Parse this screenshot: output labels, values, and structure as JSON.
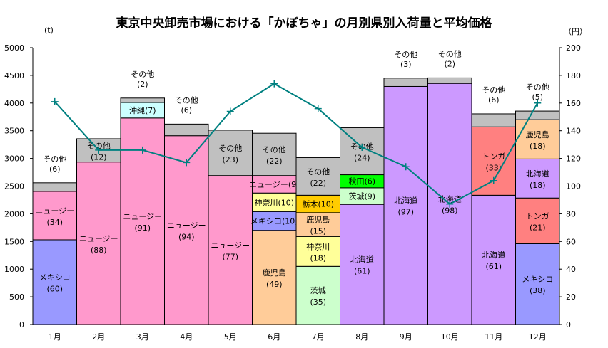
{
  "chart_data": {
    "type": "bar",
    "stacked": true,
    "title": "東京中央卸売市場における「かぼちゃ」の月別県別入荷量と平均価格",
    "y_left_unit": "(t)",
    "y_right_unit": "（円）",
    "ylim_left": [
      0,
      5000
    ],
    "ylim_right": [
      0,
      200
    ],
    "yticks_left": [
      0,
      500,
      1000,
      1500,
      2000,
      2500,
      3000,
      3500,
      4000,
      4500,
      5000
    ],
    "yticks_right": [
      0,
      20,
      40,
      60,
      80,
      100,
      120,
      140,
      160,
      180,
      200
    ],
    "grid": false,
    "categories": [
      "1月",
      "2月",
      "3月",
      "4月",
      "5月",
      "6月",
      "7月",
      "8月",
      "9月",
      "10月",
      "11月",
      "12月"
    ],
    "colors": {
      "メキシコ": "#9999FF",
      "ニュージー": "#FF99CC",
      "その他": "#C0C0C0",
      "沖縄": "#CCFFFF",
      "鹿児島": "#FFCC99",
      "神奈川": "#FFFF99",
      "茨城": "#CCFFCC",
      "栃木": "#FFCC00",
      "秋田": "#00FF00",
      "北海道": "#CC99FF",
      "トンガ": "#FF8080",
      "price_line": "#008080"
    },
    "stacks": [
      [
        {
          "name": "メキシコ",
          "value": 1530,
          "share": 60
        },
        {
          "name": "ニュージー",
          "value": 875,
          "share": 34
        },
        {
          "name": "その他",
          "value": 155,
          "share": 6
        }
      ],
      [
        {
          "name": "ニュージー",
          "value": 2935,
          "share": 88
        },
        {
          "name": "その他",
          "value": 420,
          "share": 12
        }
      ],
      [
        {
          "name": "ニュージー",
          "value": 3730,
          "share": 91
        },
        {
          "name": "沖縄",
          "value": 280,
          "share": 7
        },
        {
          "name": "その他",
          "value": 80,
          "share": 2
        }
      ],
      [
        {
          "name": "ニュージー",
          "value": 3410,
          "share": 94
        },
        {
          "name": "その他",
          "value": 210,
          "share": 6
        }
      ],
      [
        {
          "name": "ニュージー",
          "value": 2690,
          "share": 77
        },
        {
          "name": "その他",
          "value": 820,
          "share": 23
        }
      ],
      [
        {
          "name": "鹿児島",
          "value": 1700,
          "share": 49
        },
        {
          "name": "メキシコ",
          "value": 340,
          "share": 10
        },
        {
          "name": "神奈川",
          "value": 335,
          "share": 10
        },
        {
          "name": "ニュージー",
          "value": 315,
          "share": 9
        },
        {
          "name": "その他",
          "value": 765,
          "share": 22
        }
      ],
      [
        {
          "name": "茨城",
          "value": 1050,
          "share": 35
        },
        {
          "name": "神奈川",
          "value": 540,
          "share": 18
        },
        {
          "name": "鹿児島",
          "value": 430,
          "share": 15
        },
        {
          "name": "栃木",
          "value": 315,
          "share": 10
        },
        {
          "name": "その他",
          "value": 680,
          "share": 22
        }
      ],
      [
        {
          "name": "北海道",
          "value": 2170,
          "share": 61
        },
        {
          "name": "茨城",
          "value": 300,
          "share": 9
        },
        {
          "name": "秋田",
          "value": 235,
          "share": 6
        },
        {
          "name": "その他",
          "value": 850,
          "share": 24
        }
      ],
      [
        {
          "name": "北海道",
          "value": 4300,
          "share": 97
        },
        {
          "name": "その他",
          "value": 150,
          "share": 3
        }
      ],
      [
        {
          "name": "北海道",
          "value": 4355,
          "share": 98
        },
        {
          "name": "その他",
          "value": 100,
          "share": 2
        }
      ],
      [
        {
          "name": "北海道",
          "value": 2335,
          "share": 61
        },
        {
          "name": "トンガ",
          "value": 1235,
          "share": 33
        },
        {
          "name": "その他",
          "value": 235,
          "share": 6
        }
      ],
      [
        {
          "name": "メキシコ",
          "value": 1460,
          "share": 38
        },
        {
          "name": "トンガ",
          "value": 825,
          "share": 21
        },
        {
          "name": "北海道",
          "value": 705,
          "share": 18
        },
        {
          "name": "鹿児島",
          "value": 710,
          "share": 18
        },
        {
          "name": "その他",
          "value": 155,
          "share": 5
        }
      ]
    ],
    "price_line": {
      "axis": "right",
      "marker": "plus",
      "values": [
        161,
        126,
        126,
        117,
        154,
        174,
        156,
        128,
        114,
        87,
        104,
        160
      ]
    }
  }
}
